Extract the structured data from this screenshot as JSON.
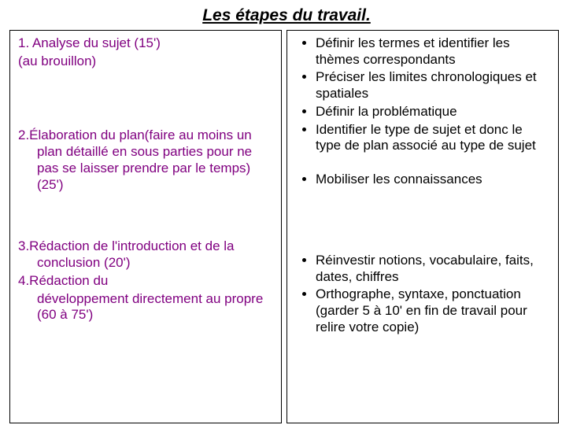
{
  "title": "Les étapes du travail.",
  "left": {
    "color": "#800080",
    "item1": "1. Analyse du sujet  (15')",
    "item1_sub": "(au brouillon)",
    "item2": "2.Élaboration du plan(faire au moins un plan détaillé en sous parties pour ne pas se laisser prendre par le temps) (25')",
    "item3": "3.Rédaction de l'introduction et de la conclusion (20')",
    "item4": "4.Rédaction du",
    "item4_sub": " développement directement au propre (60 à 75')"
  },
  "right": {
    "color": "#000000",
    "b1": "Définir les termes et identifier les thèmes correspondants",
    "b2": "Préciser les limites chronologiques et spatiales",
    "b3": "Définir la problématique",
    "b4": "Identifier le type de sujet et donc le type de plan associé au type de sujet",
    "b5": "Mobiliser les connaissances",
    "b6": "Réinvestir notions, vocabulaire, faits, dates, chiffres",
    "b7": "Orthographe, syntaxe, ponctuation (garder 5 à 10' en fin de travail pour relire votre copie)"
  }
}
